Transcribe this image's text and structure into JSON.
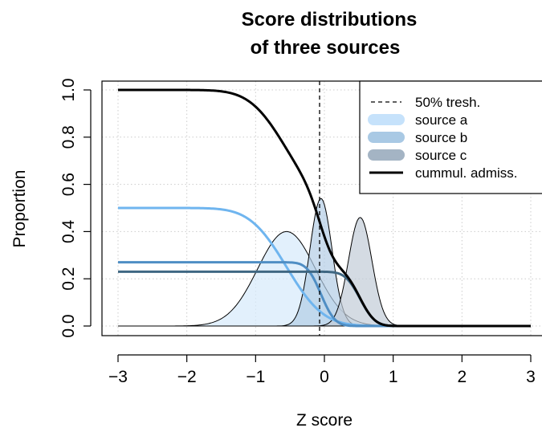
{
  "chart_data": {
    "type": "area",
    "title_lines": [
      "Score distributions",
      "of three sources"
    ],
    "xlabel": "Z score",
    "ylabel": "Proportion",
    "xlim": [
      -3,
      3
    ],
    "ylim": [
      0,
      1
    ],
    "x_ticks": [
      -3,
      -2,
      -1,
      0,
      1,
      2,
      3
    ],
    "y_ticks": [
      0.0,
      0.2,
      0.4,
      0.6,
      0.8,
      1.0
    ],
    "x_tick_labels": [
      "−3",
      "−2",
      "−1",
      "0",
      "1",
      "2",
      "3"
    ],
    "y_tick_labels": [
      "0.0",
      "0.2",
      "0.4",
      "0.6",
      "0.8",
      "1.0"
    ],
    "grid": true,
    "threshold": {
      "x": -0.07,
      "label": "50% tresh."
    },
    "legend_position": "top-right",
    "colors": {
      "a_fill": "#d6eafb",
      "a_line": "#6fb5ef",
      "b_fill": "#b3cde6",
      "b_line": "#4f8ec4",
      "c_fill": "#c2ccd7",
      "c_line": "#3f6782",
      "cumulative": "#000000",
      "legend_a": "#c6e2fb",
      "legend_b": "#a9c9e4",
      "legend_c": "#a4b4c4"
    },
    "series": [
      {
        "name": "source a",
        "density_peak": 0.4,
        "mean": -0.55,
        "sd": 0.42,
        "cum_weight": 0.5
      },
      {
        "name": "source b",
        "density_peak": 0.54,
        "mean": -0.05,
        "sd": 0.16,
        "cum_weight": 0.27
      },
      {
        "name": "source c",
        "density_peak": 0.46,
        "mean": 0.52,
        "sd": 0.17,
        "cum_weight": 0.23
      }
    ],
    "cumulative": {
      "name": "cummul. admiss."
    },
    "legend": [
      {
        "label": "50% tresh.",
        "key": "dashed"
      },
      {
        "label": "source a",
        "key": "legend_a"
      },
      {
        "label": "source b",
        "key": "legend_b"
      },
      {
        "label": "source c",
        "key": "legend_c"
      },
      {
        "label": "cummul. admiss.",
        "key": "cumulative"
      }
    ]
  }
}
